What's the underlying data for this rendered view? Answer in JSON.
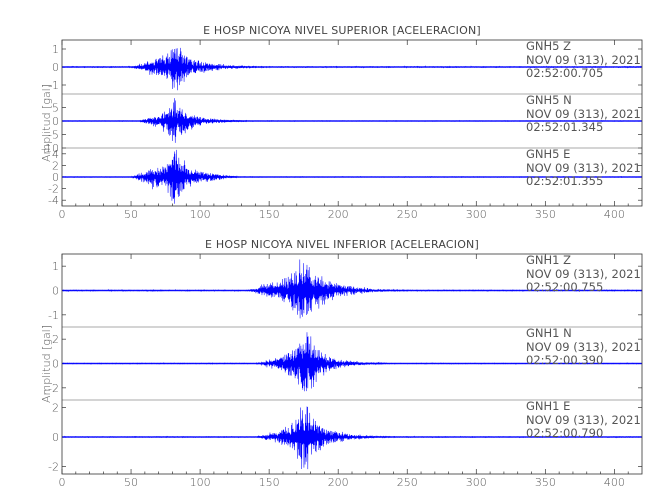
{
  "chart_data": [
    {
      "type": "line",
      "title": "E HOSP NICOYA NIVEL SUPERIOR [ACELERACION]",
      "xlabel": "",
      "ylabel": "Amplitud [gal]",
      "xlim": [
        0,
        420
      ],
      "x_ticks": [
        "0",
        "50",
        "100",
        "150",
        "200",
        "250",
        "300",
        "350",
        "400"
      ],
      "trace_color": "#0000ff",
      "grid": false,
      "series": [
        {
          "name": "GNH5 Z",
          "component_label": "GNH5   Z",
          "date_label": "NOV 09 (313), 2021",
          "time_label": "02:52:00.705",
          "ylim": [
            -1.5,
            1.5
          ],
          "y_ticks": [
            "1",
            "0",
            "-1"
          ],
          "noise": 0.05,
          "envelope": [
            [
              0,
              0
            ],
            [
              50,
              0
            ],
            [
              60,
              0.25
            ],
            [
              70,
              0.5
            ],
            [
              78,
              0.75
            ],
            [
              82,
              1.4
            ],
            [
              86,
              0.9
            ],
            [
              92,
              0.55
            ],
            [
              100,
              0.3
            ],
            [
              110,
              0.18
            ],
            [
              120,
              0.1
            ],
            [
              135,
              0.05
            ],
            [
              150,
              0
            ],
            [
              420,
              0
            ]
          ]
        },
        {
          "name": "GNH5 N",
          "component_label": "GNH5   N",
          "date_label": "NOV 09 (313), 2021",
          "time_label": "02:52:01.345",
          "ylim": [
            -10,
            10
          ],
          "y_ticks": [
            "5",
            "0",
            "-5",
            "-10"
          ],
          "noise": 0.2,
          "envelope": [
            [
              0,
              0
            ],
            [
              55,
              0
            ],
            [
              65,
              1.5
            ],
            [
              72,
              2.5
            ],
            [
              78,
              5.5
            ],
            [
              82,
              7.5
            ],
            [
              86,
              5.5
            ],
            [
              92,
              3.2
            ],
            [
              100,
              1.5
            ],
            [
              110,
              0.8
            ],
            [
              125,
              0.3
            ],
            [
              140,
              0
            ],
            [
              420,
              0
            ]
          ]
        },
        {
          "name": "GNH5 E",
          "component_label": "GNH5   E",
          "date_label": "NOV 09 (313), 2021",
          "time_label": "02:52:01.355",
          "ylim": [
            -5,
            5
          ],
          "y_ticks": [
            "4",
            "2",
            "0",
            "-2",
            "-4"
          ],
          "noise": 0.1,
          "envelope": [
            [
              0,
              0
            ],
            [
              50,
              0
            ],
            [
              58,
              0.8
            ],
            [
              66,
              1.8
            ],
            [
              72,
              1.4
            ],
            [
              78,
              3.2
            ],
            [
              82,
              4.6
            ],
            [
              86,
              3.0
            ],
            [
              92,
              1.8
            ],
            [
              100,
              0.9
            ],
            [
              115,
              0.4
            ],
            [
              130,
              0
            ],
            [
              420,
              0
            ]
          ]
        }
      ]
    },
    {
      "type": "line",
      "title": "E HOSP NICOYA NIVEL INFERIOR [ACELERACION]",
      "xlabel": "",
      "ylabel": "Amplitud [gal]",
      "xlim": [
        0,
        420
      ],
      "x_ticks": [
        "0",
        "50",
        "100",
        "150",
        "200",
        "250",
        "300",
        "350",
        "400"
      ],
      "trace_color": "#0000ff",
      "grid": false,
      "series": [
        {
          "name": "GNH1 Z",
          "component_label": "GNH1   Z",
          "date_label": "NOV 09 (313), 2021",
          "time_label": "02:52:00.755",
          "ylim": [
            -1.5,
            1.5
          ],
          "y_ticks": [
            "1",
            "0",
            "-1"
          ],
          "noise": 0.04,
          "envelope": [
            [
              0,
              0
            ],
            [
              135,
              0
            ],
            [
              145,
              0.2
            ],
            [
              155,
              0.35
            ],
            [
              165,
              0.6
            ],
            [
              170,
              1.0
            ],
            [
              175,
              1.3
            ],
            [
              180,
              1.0
            ],
            [
              185,
              0.7
            ],
            [
              192,
              0.45
            ],
            [
              200,
              0.25
            ],
            [
              215,
              0.12
            ],
            [
              230,
              0.05
            ],
            [
              250,
              0
            ],
            [
              420,
              0
            ]
          ]
        },
        {
          "name": "GNH1 N",
          "component_label": "GNH1   N",
          "date_label": "NOV 09 (313), 2021",
          "time_label": "02:52:00.390",
          "ylim": [
            -3,
            3
          ],
          "y_ticks": [
            "2",
            "0",
            "-2"
          ],
          "noise": 0.06,
          "envelope": [
            [
              0,
              0
            ],
            [
              140,
              0
            ],
            [
              150,
              0.3
            ],
            [
              160,
              0.6
            ],
            [
              168,
              1.2
            ],
            [
              173,
              2.2
            ],
            [
              177,
              2.5
            ],
            [
              182,
              1.6
            ],
            [
              188,
              0.9
            ],
            [
              195,
              0.5
            ],
            [
              205,
              0.25
            ],
            [
              220,
              0.1
            ],
            [
              240,
              0
            ],
            [
              420,
              0
            ]
          ]
        },
        {
          "name": "GNH1 E",
          "component_label": "GNH1   E",
          "date_label": "NOV 09 (313), 2021",
          "time_label": "02:52:00.790",
          "ylim": [
            -2.5,
            2.5
          ],
          "y_ticks": [
            "2",
            "0",
            "-2"
          ],
          "noise": 0.05,
          "envelope": [
            [
              0,
              0
            ],
            [
              140,
              0
            ],
            [
              150,
              0.25
            ],
            [
              160,
              0.5
            ],
            [
              168,
              1.0
            ],
            [
              173,
              1.9
            ],
            [
              177,
              2.2
            ],
            [
              182,
              1.4
            ],
            [
              188,
              0.8
            ],
            [
              196,
              0.4
            ],
            [
              208,
              0.2
            ],
            [
              225,
              0.08
            ],
            [
              245,
              0
            ],
            [
              420,
              0
            ]
          ]
        }
      ]
    }
  ]
}
